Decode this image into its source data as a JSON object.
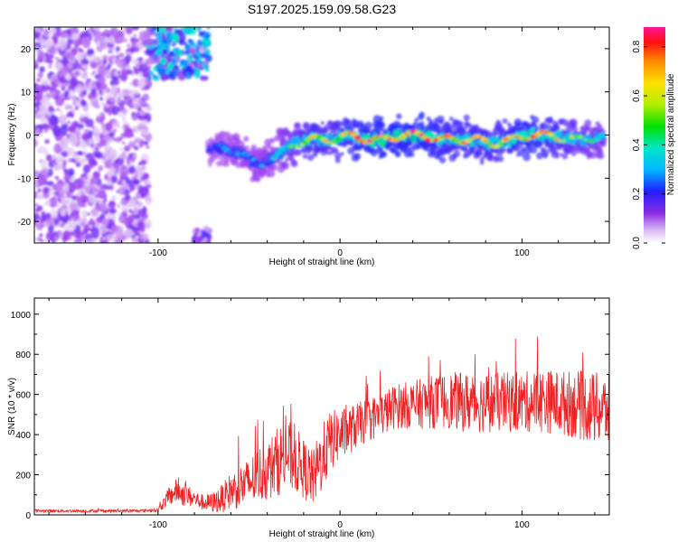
{
  "title": "S197.2025.159.09.58.G23",
  "chart_data": [
    {
      "type": "heatmap",
      "title": "S197.2025.159.09.58.G23",
      "xlabel": "Height of straight line (km)",
      "ylabel": "Frequency (Hz)",
      "xlim": [
        -168,
        148
      ],
      "ylim": [
        -25,
        25
      ],
      "xticks": [
        -100,
        0,
        100
      ],
      "yticks": [
        -20,
        -10,
        0,
        10,
        20
      ],
      "colorbar": {
        "label": "Normalized spectral amplitude",
        "range": [
          0,
          0.88
        ],
        "ticks": [
          "0.0",
          "0.2",
          "0.4",
          "0.6",
          "0.8"
        ],
        "tick_values": [
          0,
          0.2,
          0.4,
          0.6,
          0.8
        ]
      },
      "ridge": {
        "x": [
          -72,
          -65,
          -55,
          -45,
          -35,
          -25,
          -15,
          -5,
          5,
          15,
          25,
          35,
          45,
          55,
          65,
          75,
          85,
          95,
          105,
          115,
          125,
          135,
          145
        ],
        "freq": [
          -3,
          -3,
          -4,
          -7,
          -5,
          -2,
          -1,
          -1,
          0,
          -1,
          -1,
          0,
          0,
          -1,
          -1,
          -1,
          -2,
          -1,
          0,
          0,
          -1,
          -1,
          0
        ],
        "amplitude": [
          0.2,
          0.25,
          0.3,
          0.3,
          0.35,
          0.5,
          0.7,
          0.6,
          0.75,
          0.8,
          0.85,
          0.8,
          0.85,
          0.75,
          0.7,
          0.7,
          0.65,
          0.75,
          0.8,
          0.7,
          0.6,
          0.5,
          0.45
        ]
      },
      "noise_regions": [
        {
          "x": [
            -168,
            -105
          ],
          "freq": [
            -25,
            25
          ],
          "amplitude": 0.08
        },
        {
          "x": [
            -105,
            -72
          ],
          "freq": [
            13,
            25
          ],
          "amplitude": 0.2
        },
        {
          "x": [
            -80,
            -72
          ],
          "freq": [
            -25,
            -22
          ],
          "amplitude": 0.1
        }
      ]
    },
    {
      "type": "line",
      "xlabel": "Height of straight line (km)",
      "ylabel": "SNR (10 * v/v)",
      "xlim": [
        -168,
        148
      ],
      "ylim": [
        0,
        1080
      ],
      "xticks": [
        -100,
        0,
        100
      ],
      "yticks": [
        0,
        200,
        400,
        600,
        800,
        1000
      ],
      "color": "#ee2222",
      "x": [
        -168,
        -150,
        -130,
        -110,
        -100,
        -95,
        -90,
        -85,
        -80,
        -75,
        -70,
        -65,
        -60,
        -55,
        -50,
        -45,
        -40,
        -35,
        -30,
        -25,
        -20,
        -15,
        -10,
        -5,
        0,
        5,
        10,
        15,
        20,
        25,
        30,
        40,
        50,
        60,
        70,
        80,
        90,
        100,
        110,
        120,
        130,
        140,
        148
      ],
      "y": [
        20,
        20,
        20,
        20,
        25,
        80,
        120,
        100,
        80,
        60,
        60,
        80,
        120,
        140,
        160,
        200,
        220,
        260,
        300,
        280,
        230,
        180,
        280,
        370,
        400,
        420,
        450,
        470,
        490,
        510,
        540,
        550,
        560,
        570,
        560,
        560,
        560,
        560,
        570,
        560,
        550,
        530,
        520
      ],
      "spread": [
        8,
        8,
        8,
        8,
        10,
        40,
        60,
        60,
        40,
        40,
        50,
        70,
        90,
        110,
        120,
        140,
        150,
        170,
        180,
        170,
        150,
        140,
        170,
        150,
        130,
        120,
        110,
        110,
        110,
        110,
        110,
        120,
        130,
        140,
        150,
        150,
        150,
        150,
        160,
        160,
        170,
        180,
        180
      ]
    }
  ]
}
